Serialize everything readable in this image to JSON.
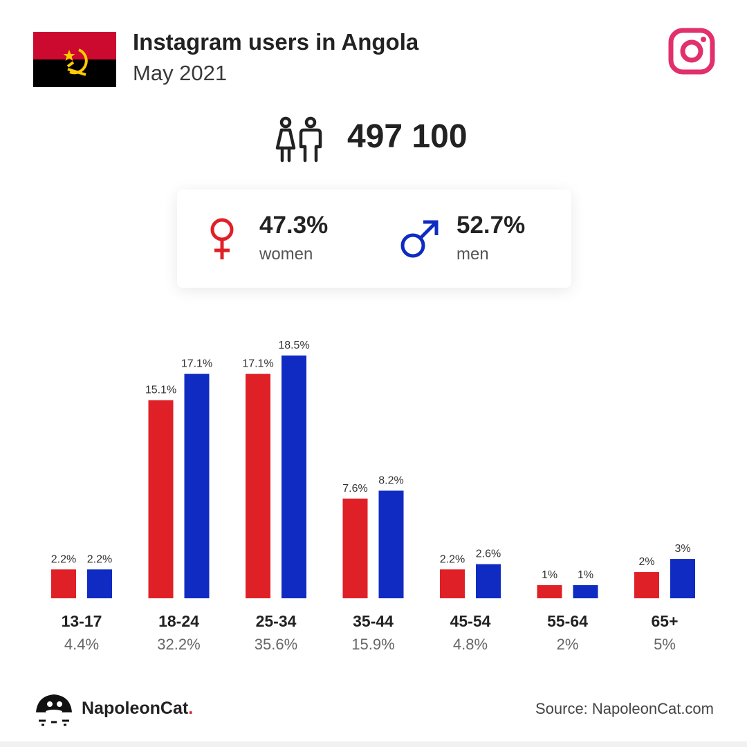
{
  "header": {
    "title": "Instagram users in Angola",
    "subtitle": "May 2021"
  },
  "icons": {
    "flag": "angola-flag-icon",
    "logo": "instagram-icon",
    "people": "people-icon",
    "female": "female-symbol-icon",
    "male": "male-symbol-icon",
    "brand": "napoleoncat-logo-icon"
  },
  "total": {
    "value": "497 100"
  },
  "gender": {
    "women": {
      "pct": "47.3%",
      "label": "women"
    },
    "men": {
      "pct": "52.7%",
      "label": "men"
    }
  },
  "colors": {
    "women": "#e02027",
    "men": "#0f2bc2",
    "instagram": "#e1306c",
    "flag_red": "#cc092f",
    "flag_black": "#000000",
    "flag_emblem": "#ffcb00"
  },
  "chart_data": {
    "type": "bar",
    "categories": [
      "13-17",
      "18-24",
      "25-34",
      "35-44",
      "45-54",
      "55-64",
      "65+"
    ],
    "series": [
      {
        "name": "women",
        "values": [
          2.2,
          15.1,
          17.1,
          7.6,
          2.2,
          1,
          2
        ],
        "labels": [
          "2.2%",
          "15.1%",
          "17.1%",
          "7.6%",
          "2.2%",
          "1%",
          "2%"
        ]
      },
      {
        "name": "men",
        "values": [
          2.2,
          17.1,
          18.5,
          8.2,
          2.6,
          1,
          3
        ],
        "labels": [
          "2.2%",
          "17.1%",
          "18.5%",
          "8.2%",
          "2.6%",
          "1%",
          "3%"
        ]
      }
    ],
    "totals": [
      "4.4%",
      "32.2%",
      "35.6%",
      "15.9%",
      "4.8%",
      "2%",
      "5%"
    ],
    "ylim": [
      0,
      18.5
    ],
    "grid": false
  },
  "footer": {
    "brand": "NapoleonCat",
    "brand_dot": ".",
    "source": "Source: NapoleonCat.com"
  }
}
